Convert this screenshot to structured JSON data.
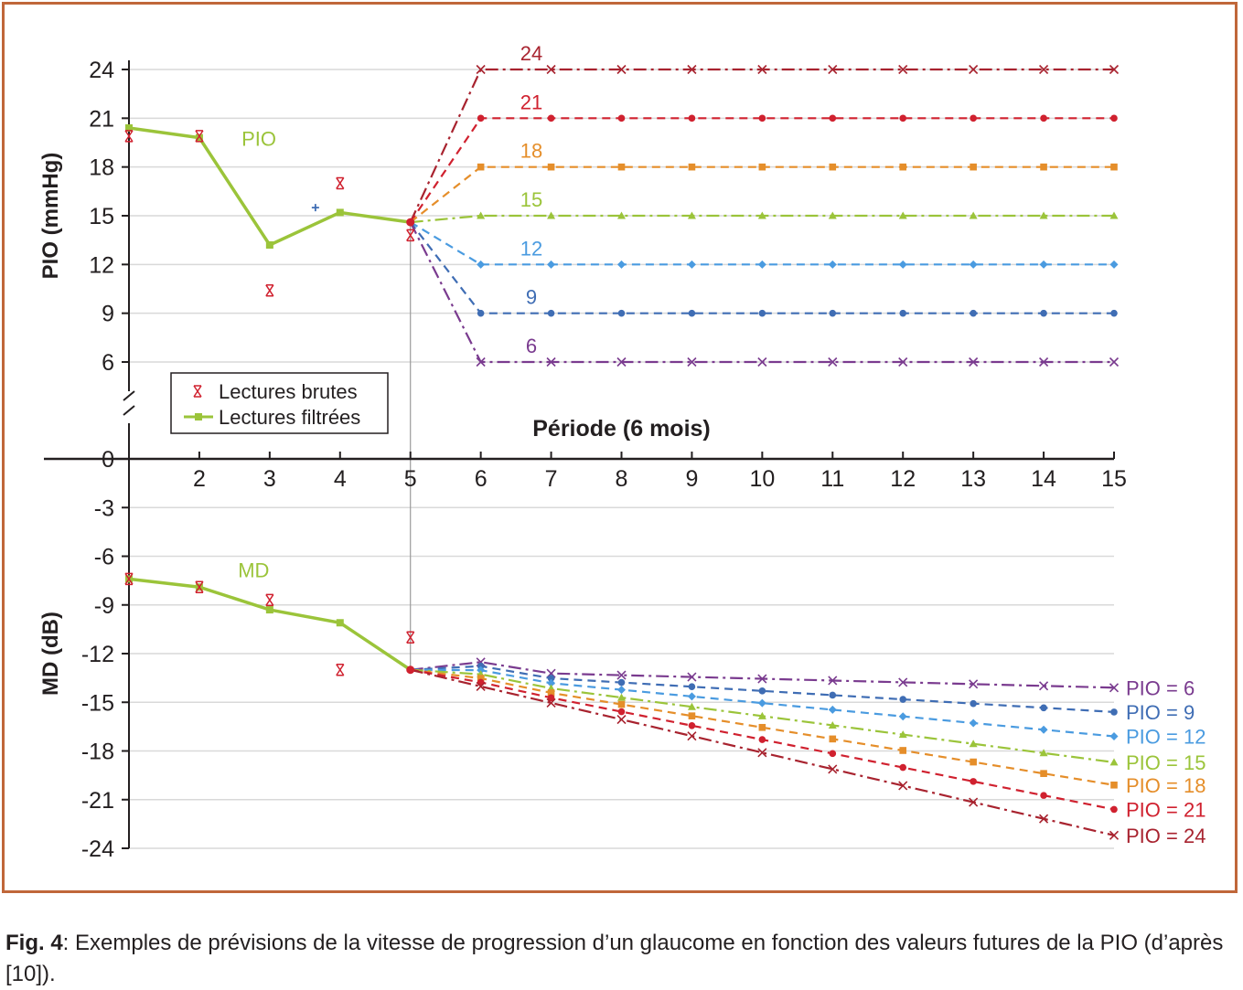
{
  "chart_data": {
    "type": "line",
    "xlabel": "Période (6 mois)",
    "x_ticks": [
      2,
      3,
      4,
      5,
      6,
      7,
      8,
      9,
      10,
      11,
      12,
      13,
      14,
      15
    ],
    "xlim": [
      1,
      15
    ],
    "top_panel": {
      "ylabel": "PIO (mmHg)",
      "ylim": [
        6,
        24
      ],
      "y_ticks": [
        24,
        21,
        18,
        15,
        12,
        9,
        6
      ],
      "filtered_label": "PIO",
      "filtered": {
        "x": [
          1,
          2,
          3,
          4,
          5
        ],
        "y": [
          20.4,
          19.8,
          13.2,
          15.2,
          14.6
        ]
      },
      "raw": {
        "x": [
          1,
          2,
          3,
          4,
          5
        ],
        "y": [
          19.9,
          19.9,
          10.4,
          17.0,
          13.8
        ]
      },
      "extra_marker": {
        "x": 3.65,
        "y": 15.5
      },
      "projections": [
        {
          "name": "24",
          "value": 24,
          "color": "#a8232f",
          "style": "dashdot",
          "marker": "x"
        },
        {
          "name": "21",
          "value": 21,
          "color": "#d0212f",
          "style": "dash",
          "marker": "circle"
        },
        {
          "name": "18",
          "value": 18,
          "color": "#e58e2a",
          "style": "dash",
          "marker": "square"
        },
        {
          "name": "15",
          "value": 15,
          "color": "#9bc43a",
          "style": "dashdot",
          "marker": "triangle"
        },
        {
          "name": "12",
          "value": 12,
          "color": "#4a9be0",
          "style": "dash",
          "marker": "diamond"
        },
        {
          "name": "9",
          "value": 9,
          "color": "#3f6db4",
          "style": "dash",
          "marker": "circle"
        },
        {
          "name": "6",
          "value": 6,
          "color": "#7a3b8f",
          "style": "dashdot",
          "marker": "x"
        }
      ]
    },
    "bottom_panel": {
      "ylabel": "MD (dB)",
      "ylim": [
        -24,
        0
      ],
      "y_ticks": [
        0,
        -3,
        -6,
        -9,
        -12,
        -15,
        -18,
        -21,
        -24
      ],
      "filtered_label": "MD",
      "filtered": {
        "x": [
          1,
          2,
          3,
          4,
          5
        ],
        "y": [
          -7.4,
          -7.9,
          -9.3,
          -10.1,
          -13.0
        ]
      },
      "raw": {
        "x": [
          1,
          2,
          3,
          4,
          5
        ],
        "y": [
          -7.4,
          -7.9,
          -8.7,
          -13.0,
          -11.0
        ]
      },
      "projections": [
        {
          "name": "PIO = 6",
          "color": "#7a3b8f",
          "style": "dashdot",
          "marker": "x",
          "end": -14.1
        },
        {
          "name": "PIO = 9",
          "color": "#3f6db4",
          "style": "dash",
          "marker": "circle",
          "end": -15.6
        },
        {
          "name": "PIO = 12",
          "color": "#4a9be0",
          "style": "dash",
          "marker": "diamond",
          "end": -17.1
        },
        {
          "name": "PIO = 15",
          "color": "#9bc43a",
          "style": "dashdot",
          "marker": "triangle",
          "end": -18.7
        },
        {
          "name": "PIO = 18",
          "color": "#e58e2a",
          "style": "dash",
          "marker": "square",
          "end": -20.1
        },
        {
          "name": "PIO = 21",
          "color": "#d0212f",
          "style": "dash",
          "marker": "circle",
          "end": -21.6
        },
        {
          "name": "PIO = 24",
          "color": "#a8232f",
          "style": "dashdot",
          "marker": "x",
          "end": -23.2
        }
      ]
    },
    "legend": {
      "position": "center-left",
      "items": [
        {
          "label": "Lectures brutes",
          "color": "#d0212f",
          "marker": "x"
        },
        {
          "label": "Lectures filtrées",
          "color": "#9bc43a",
          "marker": "square-line"
        }
      ]
    },
    "colors": {
      "filtered": "#9bc43a",
      "raw": "#d0212f",
      "extra": "#3f6db4",
      "grid": "#d9d9d9",
      "frame": "#c0673a"
    }
  },
  "caption": {
    "label": "Fig. 4",
    "text": ": Exemples de prévisions de la vitesse de progression d’un glaucome en fonction des valeurs futures de la PIO (d’après [10])."
  }
}
